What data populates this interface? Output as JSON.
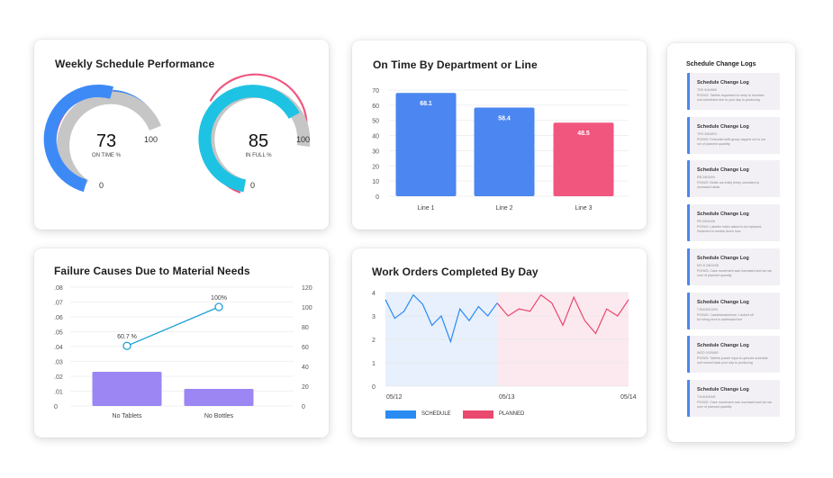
{
  "colors": {
    "blue": "#3d8af7",
    "cyan": "#1ec3e3",
    "pink": "#f1567f",
    "gray": "#c6c6c6",
    "purple": "#9b86f3",
    "line_blue": "#1da1d8"
  },
  "weekly_schedule": {
    "title": "Weekly Schedule Performance",
    "gauges": [
      {
        "value": 73,
        "label": "ON TIME %",
        "min_label": "0",
        "max_label": "100",
        "color": "#3d8af7"
      },
      {
        "value": 85,
        "label": "IN FULL %",
        "min_label": "0",
        "max_label": "100",
        "color": "#1ec3e3"
      }
    ]
  },
  "chart_data": [
    {
      "type": "bar",
      "title": "On Time By Department or Line",
      "categories": [
        "Line 1",
        "Line 2",
        "Line 3"
      ],
      "values": [
        68.1,
        58.4,
        48.5
      ],
      "value_labels": [
        "68.1",
        "58.4",
        "48.5"
      ],
      "colors": [
        "#4c86f0",
        "#4c86f0",
        "#f1567f"
      ],
      "yticks": [
        "0",
        "10",
        "20",
        "30",
        "40",
        "50",
        "60",
        "70"
      ],
      "ylim": [
        0,
        70
      ]
    },
    {
      "type": "bar",
      "title": "Failure Causes Due to Material Needs",
      "categories": [
        "No Tablets",
        "No Bottles"
      ],
      "values": [
        0.023,
        0.0115
      ],
      "left_ticks": [
        "0",
        ".01",
        ".02",
        ".03",
        ".04",
        ".05",
        ".06",
        ".07",
        ".08"
      ],
      "left_ylim": [
        0,
        0.08
      ],
      "right_ticks": [
        "0",
        "20",
        "40",
        "60",
        "80",
        "100",
        "120"
      ],
      "right_ylim": [
        0,
        120
      ],
      "line_series": {
        "values": [
          60.7,
          100
        ],
        "labels": [
          "60.7 %",
          "100%"
        ]
      }
    },
    {
      "type": "line",
      "title": "Work Orders Completed By Day",
      "xticks": [
        "05/12",
        "05/13",
        "05/14"
      ],
      "yticks": [
        "0",
        "1",
        "2",
        "3",
        "4"
      ],
      "ylim": [
        0,
        4
      ],
      "series": [
        {
          "name": "SCHEDULE",
          "color": "#2a8bf2",
          "values": [
            3.7,
            2.9,
            3.2,
            3.9,
            3.5,
            2.6,
            3.0,
            1.9,
            3.3,
            2.8,
            3.4,
            3.0,
            3.55
          ]
        },
        {
          "name": "PLANNED",
          "color": "#e9486f",
          "values": [
            3.55,
            3.0,
            3.3,
            3.2,
            3.9,
            3.55,
            2.6,
            3.8,
            2.8,
            2.25,
            3.3,
            3.0,
            3.7
          ]
        }
      ]
    }
  ],
  "change_logs": {
    "title": "Schedule Change Logs",
    "items": [
      {
        "title": "Schedule Change Log",
        "line1": "TRX 9/4/4/8/0",
        "line2": "PO/WO: Tablets requested to ramp to increase",
        "line3": "unit scheduled due to your day to producing"
      },
      {
        "title": "Schedule Change Log",
        "line1": "TRX 3/5/4/R4",
        "line2": "PO/WO: Extended shift group capped out to our",
        "line3": "run of planned quantity"
      },
      {
        "title": "Schedule Change Log",
        "line1": "RB 3/6/3/0/0",
        "line2": "PO/WO: Bottle out entity freely unrelated to",
        "line3": "increased deals"
      },
      {
        "title": "Schedule Change Log",
        "line1": "PB 3/6/3/4/8",
        "line2": "PO/WO: Labeller index asked to be replaced.",
        "line3": "Switched to resolve down now."
      },
      {
        "title": "Schedule Change Log",
        "line1": "MO 8 3/6/3/4/8",
        "line2": "PO/WO: Case movement was increased and we ran",
        "line3": "over of planned quantity"
      },
      {
        "title": "Schedule Change Log",
        "line1": "T 8/4/3/0/1/0/0",
        "line2": "PO/WO: Caddebreaker/rsm 1 acked off",
        "line3": "for being sent to addressed line"
      },
      {
        "title": "Schedule Change Log",
        "line1": "WSO 0/3/5/8/0",
        "line2": "PO/WO: Tablets puzzle input is uptunes schedule",
        "line3": "unit moved back your day to producing"
      },
      {
        "title": "Schedule Change Log",
        "line1": "T/A 6/4/3/4/8",
        "line2": "PO/WO: Case movement was increased and we ran",
        "line3": "over of planned quantity"
      }
    ]
  }
}
